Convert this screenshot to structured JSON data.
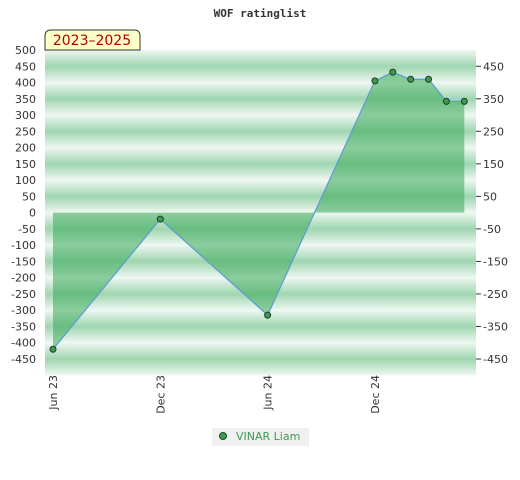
{
  "chart_data": {
    "type": "area",
    "title": "WOF ratinglist",
    "period_label": "2023–2025",
    "xlabel": "",
    "ylabel": "",
    "left_axis": {
      "ylim": [
        -450,
        500
      ],
      "ticks": [
        500,
        450,
        400,
        350,
        300,
        250,
        200,
        150,
        100,
        50,
        0,
        -50,
        -100,
        -150,
        -200,
        -250,
        -300,
        -350,
        -400,
        -450
      ]
    },
    "right_axis": {
      "ylim": [
        -450,
        500
      ],
      "ticks": [
        450,
        350,
        250,
        150,
        50,
        -50,
        -150,
        -250,
        -350,
        -450
      ]
    },
    "x_ticks": [
      "Jun 23",
      "Dec 23",
      "Jun 24",
      "Dec 24"
    ],
    "series": [
      {
        "name": "VINAR Liam",
        "points": [
          {
            "x": "2023-06",
            "y": -420
          },
          {
            "x": "2023-12",
            "y": -20
          },
          {
            "x": "2024-06",
            "y": -315
          },
          {
            "x": "2024-12",
            "y": 405
          },
          {
            "x": "2025-01",
            "y": 432
          },
          {
            "x": "2025-02",
            "y": 410
          },
          {
            "x": "2025-03",
            "y": 410
          },
          {
            "x": "2025-04",
            "y": 342
          },
          {
            "x": "2025-05",
            "y": 342
          }
        ]
      }
    ],
    "grid": true,
    "legend_position": "bottom",
    "colors": {
      "line": "#5b9bd5",
      "fill": "#3aaa5a",
      "marker": "#3d9a50",
      "band_light": "#eef7f1",
      "band_dark": "#9fd6b0",
      "badge_bg": "#ffffc8"
    }
  }
}
